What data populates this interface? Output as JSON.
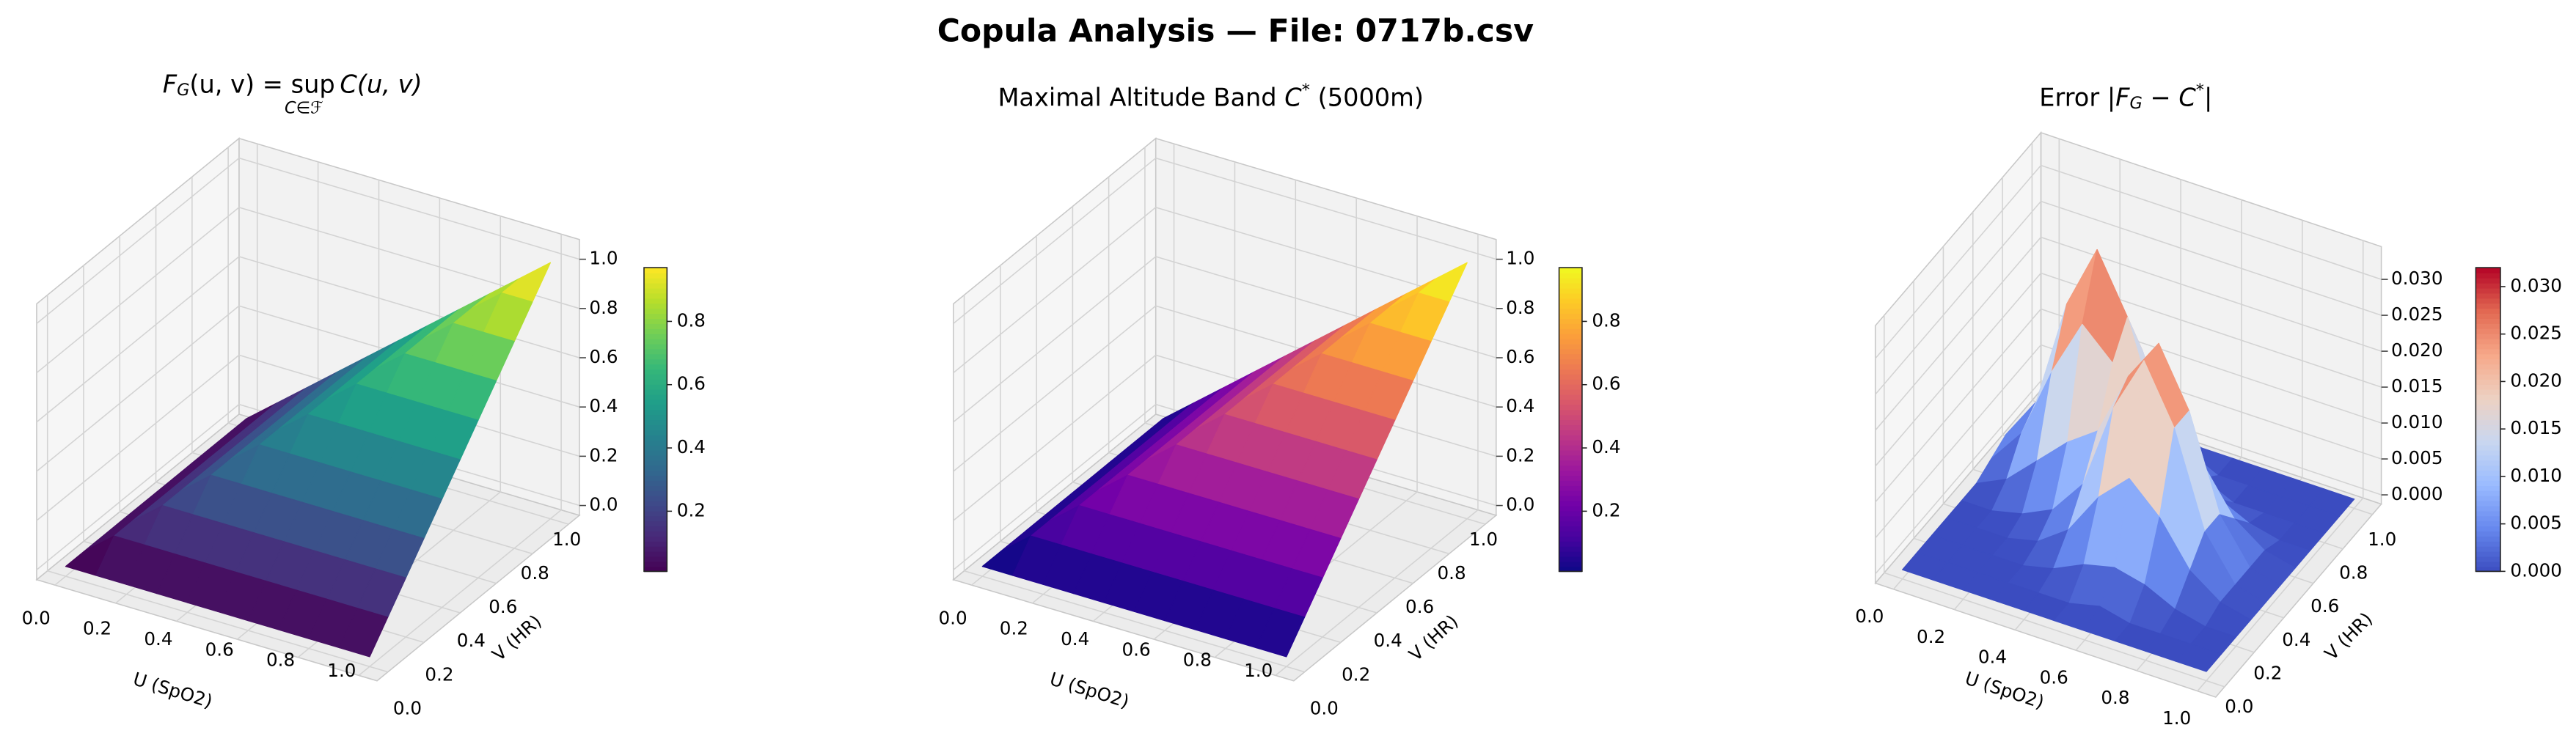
{
  "title": "Copula Analysis — File: 0717b.csv",
  "chart_data": [
    {
      "type": "surface3d",
      "title": [
        "F",
        "G",
        "(u, v) = sup",
        "C∈ℱ",
        "C(u, v)"
      ],
      "xlabel": "U (SpO2)",
      "ylabel": "V (HR)",
      "x": [
        0,
        0.1,
        0.2,
        0.3,
        0.4,
        0.5,
        0.6,
        0.7,
        0.8,
        0.9,
        1
      ],
      "y": [
        0,
        0.1,
        0.2,
        0.3,
        0.4,
        0.5,
        0.6,
        0.7,
        0.8,
        0.9,
        1
      ],
      "z": [
        [
          0,
          0,
          0,
          0,
          0,
          0,
          0,
          0,
          0,
          0,
          0
        ],
        [
          0,
          0.1,
          0.1,
          0.1,
          0.1,
          0.1,
          0.1,
          0.1,
          0.1,
          0.1,
          0.1
        ],
        [
          0,
          0.1,
          0.2,
          0.2,
          0.2,
          0.2,
          0.2,
          0.2,
          0.2,
          0.2,
          0.2
        ],
        [
          0,
          0.1,
          0.2,
          0.3,
          0.3,
          0.3,
          0.3,
          0.3,
          0.3,
          0.3,
          0.3
        ],
        [
          0,
          0.1,
          0.2,
          0.3,
          0.4,
          0.4,
          0.4,
          0.4,
          0.4,
          0.4,
          0.4
        ],
        [
          0,
          0.1,
          0.2,
          0.3,
          0.4,
          0.5,
          0.5,
          0.5,
          0.5,
          0.5,
          0.5
        ],
        [
          0,
          0.1,
          0.2,
          0.3,
          0.4,
          0.5,
          0.6,
          0.6,
          0.6,
          0.6,
          0.6
        ],
        [
          0,
          0.1,
          0.2,
          0.3,
          0.4,
          0.5,
          0.6,
          0.7,
          0.7,
          0.7,
          0.7
        ],
        [
          0,
          0.1,
          0.2,
          0.3,
          0.4,
          0.5,
          0.6,
          0.7,
          0.8,
          0.8,
          0.8
        ],
        [
          0,
          0.1,
          0.2,
          0.3,
          0.4,
          0.5,
          0.6,
          0.7,
          0.8,
          0.9,
          0.9
        ],
        [
          0,
          0.1,
          0.2,
          0.3,
          0.4,
          0.5,
          0.6,
          0.7,
          0.8,
          0.9,
          1
        ]
      ],
      "xlim": [
        0,
        1
      ],
      "ylim": [
        0,
        1
      ],
      "zlim": [
        0,
        1
      ],
      "xticks": [
        {
          "value": 0,
          "label": "0.0"
        },
        0.2,
        0.4,
        0.6,
        0.8,
        {
          "value": 1,
          "label": "1.0"
        }
      ],
      "yticks": [
        {
          "value": 0,
          "label": "0.0"
        },
        0.2,
        0.4,
        0.6,
        0.8,
        {
          "value": 1,
          "label": "1.0"
        }
      ],
      "zticks": [
        {
          "value": 0,
          "label": "0.0"
        },
        0.2,
        0.4,
        0.6,
        0.8,
        {
          "value": 1,
          "label": "1.0"
        }
      ],
      "colormap": "viridis",
      "clim": [
        0.01,
        0.97
      ],
      "cticks": [
        0.2,
        0.4,
        0.6,
        0.8
      ]
    },
    {
      "type": "surface3d",
      "title": [
        "Maximal Altitude Band ",
        "C",
        "*",
        " (5000m)"
      ],
      "xlabel": "U (SpO2)",
      "ylabel": "V (HR)",
      "x": [
        0,
        0.1,
        0.2,
        0.3,
        0.4,
        0.5,
        0.6,
        0.7,
        0.8,
        0.9,
        1
      ],
      "y": [
        0,
        0.1,
        0.2,
        0.3,
        0.4,
        0.5,
        0.6,
        0.7,
        0.8,
        0.9,
        1
      ],
      "z": [
        [
          0,
          0,
          0,
          0,
          0,
          0,
          0,
          0,
          0,
          0,
          0
        ],
        [
          0,
          0.1,
          0.1,
          0.1,
          0.1,
          0.1,
          0.1,
          0.1,
          0.1,
          0.1,
          0.1
        ],
        [
          0,
          0.1,
          0.2,
          0.2,
          0.2,
          0.2,
          0.2,
          0.2,
          0.2,
          0.2,
          0.2
        ],
        [
          0,
          0.1,
          0.2,
          0.3,
          0.3,
          0.3,
          0.3,
          0.3,
          0.3,
          0.3,
          0.3
        ],
        [
          0,
          0.1,
          0.2,
          0.3,
          0.4,
          0.4,
          0.4,
          0.4,
          0.4,
          0.4,
          0.4
        ],
        [
          0,
          0.1,
          0.2,
          0.3,
          0.4,
          0.5,
          0.5,
          0.5,
          0.5,
          0.5,
          0.5
        ],
        [
          0,
          0.1,
          0.2,
          0.3,
          0.4,
          0.5,
          0.6,
          0.6,
          0.6,
          0.6,
          0.6
        ],
        [
          0,
          0.1,
          0.2,
          0.3,
          0.4,
          0.5,
          0.6,
          0.7,
          0.7,
          0.7,
          0.7
        ],
        [
          0,
          0.1,
          0.2,
          0.3,
          0.4,
          0.5,
          0.6,
          0.7,
          0.8,
          0.8,
          0.8
        ],
        [
          0,
          0.1,
          0.2,
          0.3,
          0.4,
          0.5,
          0.6,
          0.7,
          0.8,
          0.9,
          0.9
        ],
        [
          0,
          0.1,
          0.2,
          0.3,
          0.4,
          0.5,
          0.6,
          0.7,
          0.8,
          0.9,
          1
        ]
      ],
      "xlim": [
        0,
        1
      ],
      "ylim": [
        0,
        1
      ],
      "zlim": [
        0,
        1
      ],
      "xticks": [
        {
          "value": 0,
          "label": "0.0"
        },
        0.2,
        0.4,
        0.6,
        0.8,
        {
          "value": 1,
          "label": "1.0"
        }
      ],
      "yticks": [
        {
          "value": 0,
          "label": "0.0"
        },
        0.2,
        0.4,
        0.6,
        0.8,
        {
          "value": 1,
          "label": "1.0"
        }
      ],
      "zticks": [
        {
          "value": 0,
          "label": "0.0"
        },
        0.2,
        0.4,
        0.6,
        0.8,
        {
          "value": 1,
          "label": "1.0"
        }
      ],
      "colormap": "plasma",
      "clim": [
        0.01,
        0.97
      ],
      "cticks": [
        0.2,
        0.4,
        0.6,
        0.8
      ]
    },
    {
      "type": "surface3d",
      "title": [
        "Error |",
        "F",
        "G",
        " − ",
        "C",
        "*",
        "|"
      ],
      "xlabel": "U (SpO2)",
      "ylabel": "V (HR)",
      "x": [
        0,
        0.1,
        0.2,
        0.3,
        0.4,
        0.5,
        0.6,
        0.7,
        0.8,
        0.9,
        1
      ],
      "y": [
        0,
        0.1,
        0.2,
        0.3,
        0.4,
        0.5,
        0.6,
        0.7,
        0.8,
        0.9,
        1
      ],
      "z": [
        [
          0,
          0,
          0,
          0,
          0,
          0,
          0,
          0,
          0,
          0,
          0
        ],
        [
          0,
          0,
          0,
          0,
          0,
          0,
          0.001,
          0,
          0,
          0,
          0
        ],
        [
          0,
          0,
          0,
          0,
          0.001,
          0.003,
          0.004,
          0.003,
          0.001,
          0,
          0
        ],
        [
          0,
          0,
          0,
          0.001,
          0.004,
          0.01,
          0.014,
          0.01,
          0.004,
          0.001,
          0
        ],
        [
          0,
          0,
          0.001,
          0.003,
          0.008,
          0.02,
          0.028,
          0.02,
          0.007,
          0.001,
          0
        ],
        [
          0,
          0.002,
          0.006,
          0.01,
          0.013,
          0.022,
          0.028,
          0.02,
          0.007,
          0.001,
          0
        ],
        [
          0.001,
          0.006,
          0.016,
          0.024,
          0.02,
          0.016,
          0.015,
          0.01,
          0.004,
          0.001,
          0
        ],
        [
          0.002,
          0.008,
          0.023,
          0.032,
          0.024,
          0.011,
          0.005,
          0.003,
          0.001,
          0,
          0
        ],
        [
          0.001,
          0.006,
          0.016,
          0.023,
          0.017,
          0.006,
          0.002,
          0,
          0,
          0,
          0
        ],
        [
          0,
          0.002,
          0.006,
          0.008,
          0.006,
          0.002,
          0,
          0,
          0,
          0,
          0
        ],
        [
          0,
          0,
          0.001,
          0.002,
          0.001,
          0,
          0,
          0,
          0,
          0,
          0
        ]
      ],
      "xlim": [
        0,
        1
      ],
      "ylim": [
        0,
        1
      ],
      "zlim": [
        0,
        0.032
      ],
      "xticks": [
        {
          "value": 0,
          "label": "0.0"
        },
        0.2,
        0.4,
        0.6,
        0.8,
        {
          "value": 1,
          "label": "1.0"
        }
      ],
      "yticks": [
        {
          "value": 0,
          "label": "0.0"
        },
        0.2,
        0.4,
        0.6,
        0.8,
        {
          "value": 1,
          "label": "1.0"
        }
      ],
      "zticks": [
        {
          "value": 0,
          "label": "0.000"
        },
        0.005,
        {
          "value": 0.01,
          "label": "0.010"
        },
        0.015,
        {
          "value": 0.02,
          "label": "0.020"
        },
        0.025,
        {
          "value": 0.03,
          "label": "0.030"
        }
      ],
      "colormap": "coolwarm",
      "clim": [
        0,
        0.032
      ],
      "cticks": [
        {
          "value": 0,
          "label": "0.000"
        },
        0.005,
        {
          "value": 0.01,
          "label": "0.010"
        },
        0.015,
        {
          "value": 0.02,
          "label": "0.020"
        },
        0.025,
        {
          "value": 0.03,
          "label": "0.030"
        }
      ]
    }
  ]
}
